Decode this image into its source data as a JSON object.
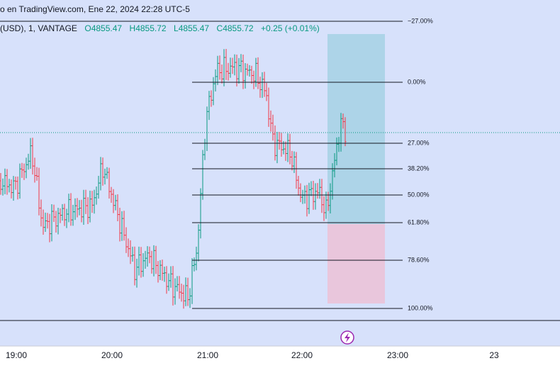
{
  "header": {
    "title": "o en TradingView.com, Ene 22, 2024 22:28 UTC-5",
    "symbol": "(USD), 1, VANTAGE",
    "open": "O4855.47",
    "high": "H4855.72",
    "low": "L4855.47",
    "close": "C4855.72",
    "change": "+0.25 (+0.01%)"
  },
  "fib_levels": [
    "−27.00%",
    "0.00%",
    "27.00%",
    "38.20%",
    "50.00%",
    "61.80%",
    "78.60%",
    "100.00%"
  ],
  "x_axis": {
    "labels": [
      "19:00",
      "20:00",
      "21:00",
      "22:00",
      "23:00",
      "23"
    ]
  }
}
